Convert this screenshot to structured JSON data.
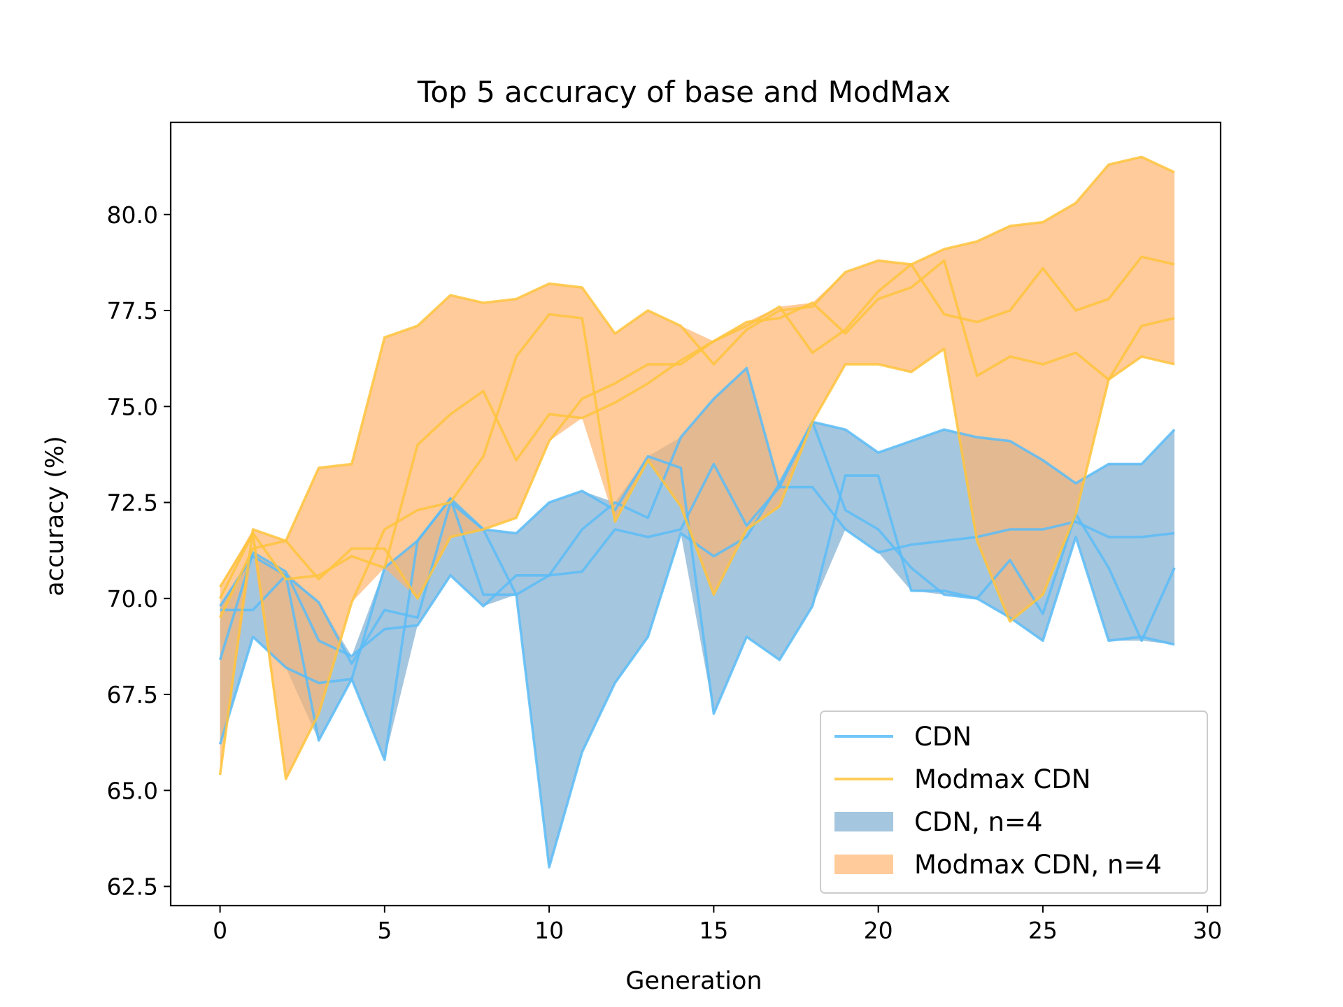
{
  "chart_data": {
    "type": "line",
    "title": "Top 5 accuracy of base and ModMax",
    "xlabel": "Generation",
    "ylabel": "accuracy (%)",
    "xlim": [
      -1.5,
      30.4
    ],
    "ylim": [
      62.0,
      82.4
    ],
    "xticks": [
      0,
      5,
      10,
      15,
      20,
      25,
      30
    ],
    "yticks": [
      62.5,
      65.0,
      67.5,
      70.0,
      72.5,
      75.0,
      77.5,
      80.0
    ],
    "x": [
      0,
      1,
      2,
      3,
      4,
      5,
      6,
      7,
      8,
      9,
      10,
      11,
      12,
      13,
      14,
      15,
      16,
      17,
      18,
      19,
      20,
      21,
      22,
      23,
      24,
      25,
      26,
      27,
      28,
      29
    ],
    "colors": {
      "cdn_line": "#5bbcf7",
      "cdn_fill": "#7aabd0",
      "modmax_line": "#ffc43d",
      "modmax_fill": "#ffb36b"
    },
    "legend_position": "lower-right",
    "legend": [
      {
        "label": "CDN",
        "kind": "line",
        "color_key": "cdn_line"
      },
      {
        "label": "Modmax CDN",
        "kind": "line",
        "color_key": "modmax_line"
      },
      {
        "label": "CDN, n=4",
        "kind": "patch",
        "color_key": "cdn_fill"
      },
      {
        "label": "Modmax CDN, n=4",
        "kind": "patch",
        "color_key": "modmax_fill"
      }
    ],
    "series": [
      {
        "group": "CDN",
        "values": [
          69.7,
          69.7,
          70.6,
          69.9,
          68.3,
          69.7,
          69.5,
          72.5,
          71.8,
          71.7,
          72.5,
          72.8,
          72.3,
          73.7,
          73.4,
          67.0,
          69.0,
          68.4,
          69.8,
          73.2,
          73.2,
          70.2,
          70.2,
          70.0,
          71.0,
          69.6,
          72.2,
          70.8,
          68.9,
          70.8
        ]
      },
      {
        "group": "CDN",
        "values": [
          68.4,
          71.2,
          70.7,
          68.9,
          68.5,
          69.2,
          69.3,
          70.6,
          69.8,
          70.6,
          70.6,
          71.8,
          72.5,
          72.1,
          74.2,
          75.2,
          76.0,
          72.9,
          72.9,
          71.8,
          71.2,
          71.4,
          71.5,
          71.6,
          71.8,
          71.8,
          72.0,
          71.6,
          71.6,
          71.7
        ]
      },
      {
        "group": "CDN",
        "values": [
          66.2,
          69.0,
          68.2,
          67.8,
          67.9,
          65.8,
          71.5,
          72.6,
          71.8,
          70.1,
          70.6,
          70.7,
          71.8,
          71.6,
          71.8,
          73.5,
          71.9,
          72.9,
          74.6,
          74.4,
          73.8,
          74.1,
          74.4,
          74.2,
          74.1,
          73.6,
          73.0,
          73.5,
          73.5,
          74.4
        ]
      },
      {
        "group": "CDN",
        "values": [
          69.8,
          71.1,
          70.6,
          66.3,
          67.9,
          70.8,
          71.5,
          72.6,
          70.1,
          70.1,
          63.0,
          66.0,
          67.8,
          69.0,
          71.7,
          71.1,
          71.6,
          73.0,
          74.6,
          72.3,
          71.8,
          70.8,
          70.1,
          70.0,
          69.5,
          68.9,
          71.6,
          68.9,
          69.0,
          68.8
        ]
      },
      {
        "group": "Modmax CDN",
        "values": [
          65.4,
          71.8,
          71.5,
          73.4,
          73.5,
          76.8,
          77.1,
          77.9,
          77.7,
          77.8,
          78.2,
          78.1,
          76.9,
          77.5,
          77.1,
          76.1,
          77.0,
          77.5,
          77.6,
          78.5,
          78.8,
          78.7,
          79.1,
          79.3,
          79.7,
          79.8,
          80.3,
          81.3,
          81.5,
          81.1
        ]
      },
      {
        "group": "Modmax CDN",
        "values": [
          70.0,
          71.7,
          70.5,
          70.6,
          71.1,
          70.8,
          74.0,
          74.8,
          75.4,
          73.6,
          74.8,
          74.7,
          75.1,
          75.6,
          76.2,
          76.7,
          77.2,
          77.3,
          77.7,
          76.9,
          77.8,
          78.1,
          78.8,
          75.8,
          76.3,
          76.1,
          76.4,
          75.7,
          76.3,
          76.1
        ]
      },
      {
        "group": "Modmax CDN",
        "values": [
          70.3,
          71.7,
          65.3,
          67.0,
          69.9,
          71.8,
          72.3,
          72.5,
          73.7,
          76.3,
          77.4,
          77.3,
          72.0,
          73.6,
          72.4,
          70.1,
          71.8,
          72.4,
          74.6,
          76.1,
          76.1,
          75.9,
          76.5,
          71.5,
          69.4,
          70.1,
          72.2,
          75.7,
          77.1,
          77.3
        ]
      },
      {
        "group": "Modmax CDN",
        "values": [
          69.5,
          71.3,
          71.5,
          70.5,
          71.3,
          71.3,
          70.0,
          71.6,
          71.8,
          72.1,
          74.1,
          75.2,
          75.6,
          76.1,
          76.1,
          76.7,
          77.1,
          77.6,
          76.4,
          77.0,
          78.0,
          78.7,
          77.4,
          77.2,
          77.5,
          78.6,
          77.5,
          77.8,
          78.9,
          78.7
        ]
      }
    ]
  }
}
